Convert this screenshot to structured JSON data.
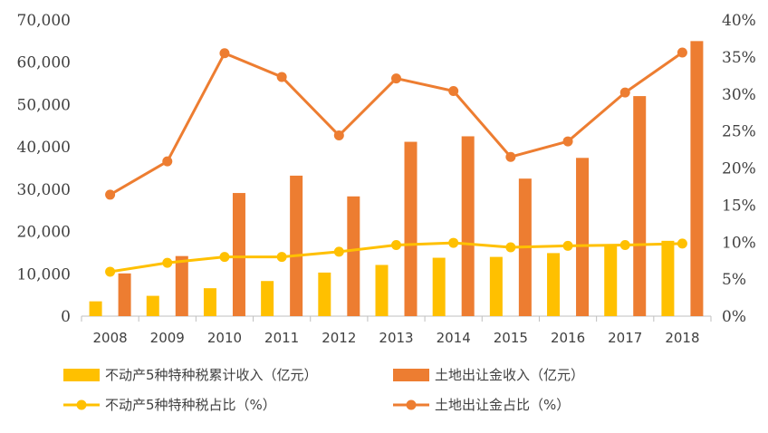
{
  "chart_data": {
    "type": "bar",
    "categories": [
      "2008",
      "2009",
      "2010",
      "2011",
      "2012",
      "2013",
      "2014",
      "2015",
      "2016",
      "2017",
      "2018"
    ],
    "series": [
      {
        "name": "不动产5种特种税累计收入（亿元）",
        "kind": "bar",
        "axis": "left",
        "color": "#FFC000",
        "values": [
          3500,
          4800,
          6600,
          8300,
          10300,
          12100,
          13800,
          14000,
          14900,
          16900,
          17800
        ]
      },
      {
        "name": "土地出让金收入（亿元）",
        "kind": "bar",
        "axis": "left",
        "color": "#ED7D31",
        "values": [
          10100,
          14200,
          29100,
          33200,
          28300,
          41200,
          42500,
          32500,
          37400,
          52000,
          65000
        ]
      },
      {
        "name": "不动产5种特种税占比（%）",
        "kind": "line",
        "axis": "right",
        "color": "#FFC000",
        "values": [
          6.0,
          7.2,
          8.0,
          8.0,
          8.7,
          9.6,
          9.9,
          9.3,
          9.5,
          9.6,
          9.8
        ]
      },
      {
        "name": "土地出让金占比（%）",
        "kind": "line",
        "axis": "right",
        "color": "#ED7D31",
        "values": [
          16.4,
          20.9,
          35.5,
          32.3,
          24.4,
          32.1,
          30.4,
          21.5,
          23.6,
          30.2,
          35.6
        ]
      }
    ],
    "ylim_left": [
      0,
      70000
    ],
    "ylim_right": [
      0,
      40
    ],
    "yticks_left": [
      "0",
      "10,000",
      "20,000",
      "30,000",
      "40,000",
      "50,000",
      "60,000",
      "70,000"
    ],
    "yticks_right": [
      "0%",
      "5%",
      "10%",
      "15%",
      "20%",
      "25%",
      "30%",
      "35%",
      "40%"
    ],
    "grid": false,
    "legend_position": "bottom"
  }
}
